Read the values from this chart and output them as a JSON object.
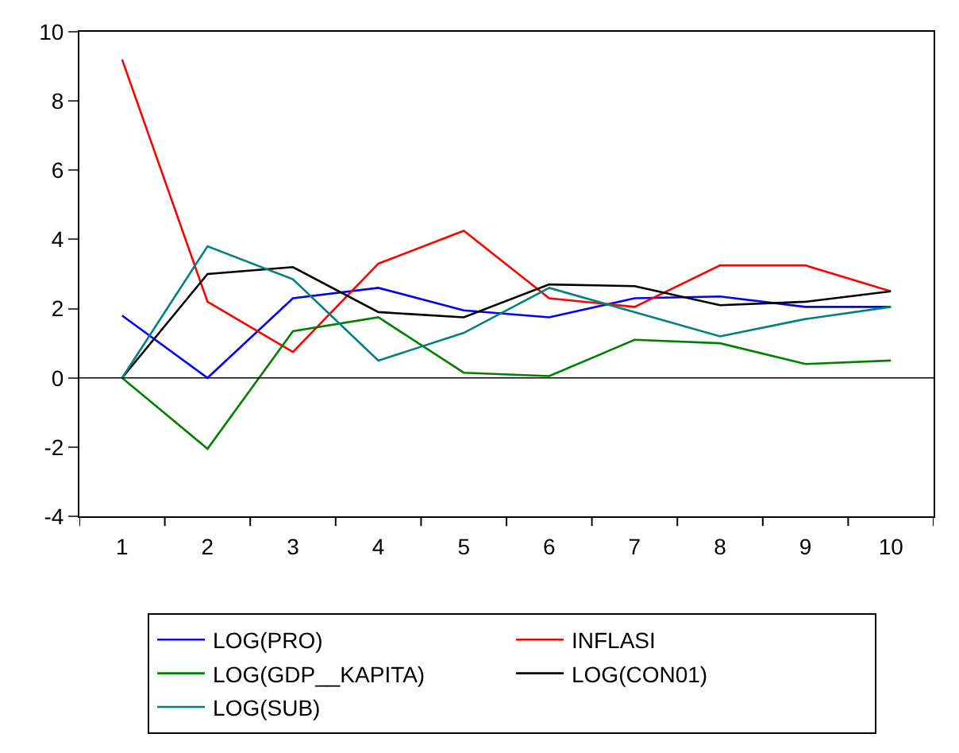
{
  "chart_data": {
    "type": "line",
    "categories": [
      "1",
      "2",
      "3",
      "4",
      "5",
      "6",
      "7",
      "8",
      "9",
      "10"
    ],
    "series": [
      {
        "name": "LOG(PRO)",
        "color": "#0000ff",
        "values": [
          1.8,
          0,
          2.3,
          2.6,
          1.95,
          1.75,
          2.3,
          2.35,
          2.05,
          2.05
        ]
      },
      {
        "name": "INFLASI",
        "color": "#ff0000",
        "values": [
          9.2,
          2.2,
          0.75,
          3.3,
          4.25,
          2.3,
          2.05,
          3.25,
          3.25,
          2.5
        ]
      },
      {
        "name": "LOG(GDP__KAPITA)",
        "color": "#008000",
        "values": [
          0,
          -2.05,
          1.35,
          1.75,
          0.15,
          0.05,
          1.1,
          1.0,
          0.4,
          0.5
        ]
      },
      {
        "name": "LOG(CON01)",
        "color": "#000000",
        "values": [
          0,
          3.0,
          3.2,
          1.9,
          1.75,
          2.7,
          2.65,
          2.1,
          2.2,
          2.5
        ]
      },
      {
        "name": "LOG(SUB)",
        "color": "#008080",
        "values": [
          0,
          3.8,
          2.85,
          0.5,
          1.3,
          2.6,
          1.9,
          1.2,
          1.7,
          2.05
        ]
      }
    ],
    "ylim": [
      -4,
      10
    ],
    "yticks": [
      -4,
      -2,
      0,
      2,
      4,
      6,
      8,
      10
    ],
    "ref_lines": [
      {
        "axis": "y",
        "value": 0,
        "color": "#000000"
      }
    ],
    "legend": "bottom",
    "marker": "none",
    "line_style": "solid"
  }
}
